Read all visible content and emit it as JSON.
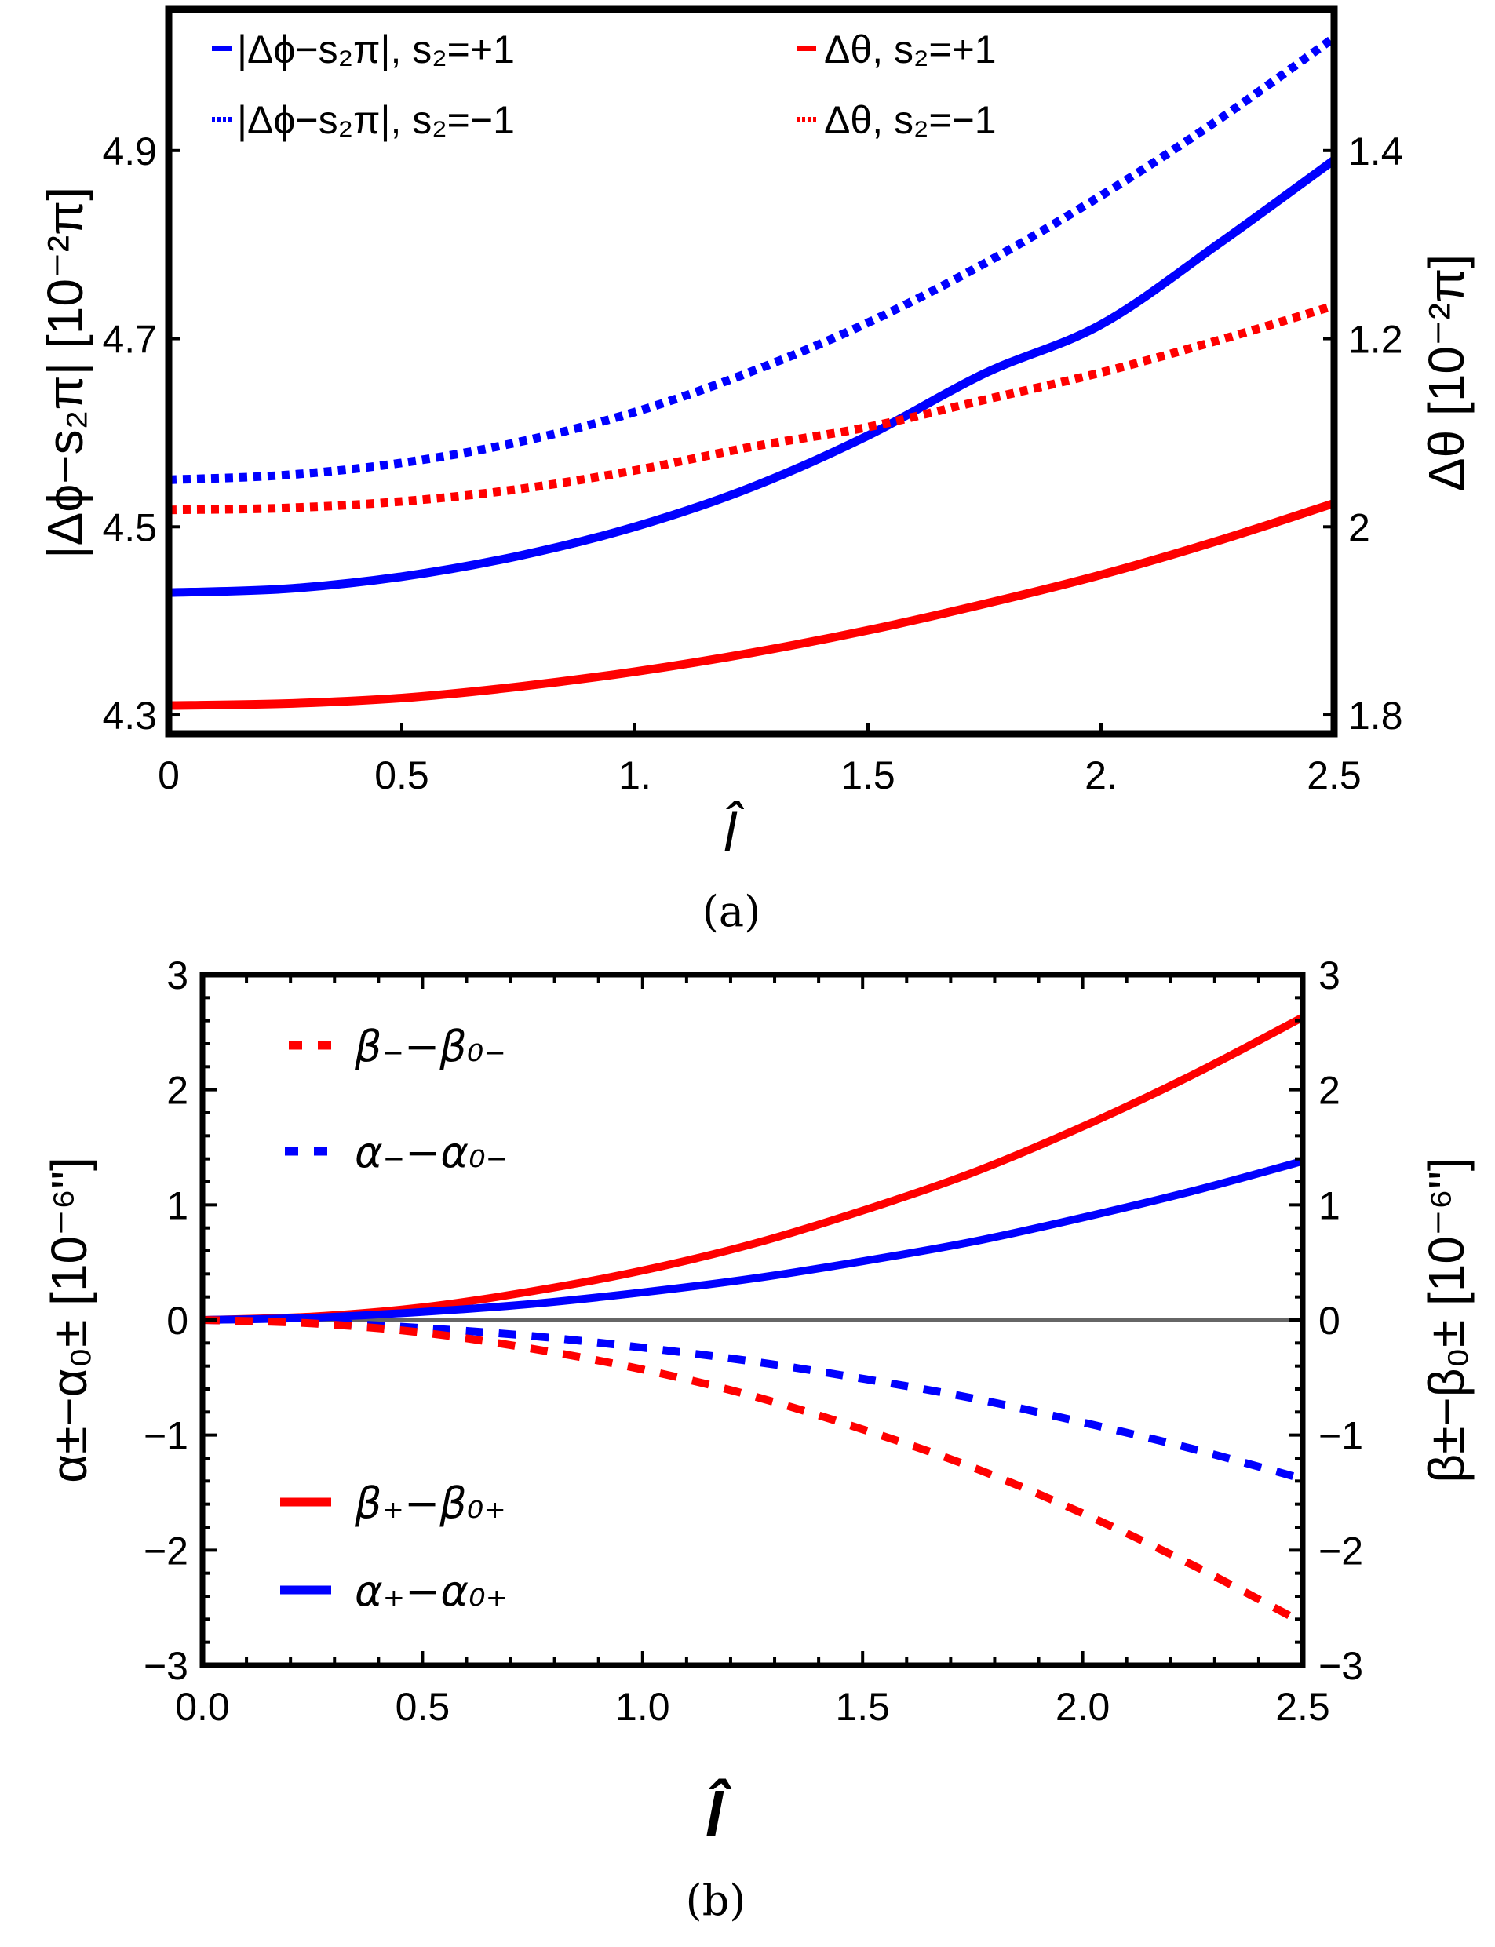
{
  "chart_data": [
    {
      "panel": "(a)",
      "type": "line",
      "caption": "(a)",
      "xlabel": "l̂",
      "ylabel_left": "|Δϕ−s₂π| [10⁻²π]",
      "ylabel_right": "Δθ [10⁻²π]",
      "xlim": [
        0,
        2.5
      ],
      "ylim_left": [
        4.28,
        5.05
      ],
      "x_ticks": [
        "0",
        "0.5",
        "1.",
        "1.5",
        "2.",
        "2.5"
      ],
      "x_tick_values": [
        0,
        0.5,
        1,
        1.5,
        2,
        2.5
      ],
      "y_left_ticks": [
        "4.3",
        "4.5",
        "4.7",
        "4.9"
      ],
      "y_left_tick_values": [
        4.3,
        4.5,
        4.7,
        4.9
      ],
      "y_right_ticks": [
        "1.8",
        "2",
        "1.2",
        "1.4"
      ],
      "y_right_tick_positions_in_left_units": [
        4.3,
        4.5,
        4.7,
        4.9
      ],
      "grid": false,
      "legend_position": "top",
      "legend": [
        {
          "label": "|Δϕ−s₂π|, s₂=+1",
          "color": "#0000ff",
          "style": "solid"
        },
        {
          "label": "Δθ, s₂=+1",
          "color": "#ff0000",
          "style": "solid"
        },
        {
          "label": "|Δϕ−s₂π|, s₂=−1",
          "color": "#0000ff",
          "style": "dotted"
        },
        {
          "label": "Δθ, s₂=−1",
          "color": "#ff0000",
          "style": "dotted"
        }
      ],
      "x": [
        0,
        0.25,
        0.5,
        0.75,
        1.0,
        1.25,
        1.5,
        1.75,
        2.0,
        2.25,
        2.5
      ],
      "series": [
        {
          "name": "|Δϕ−s₂π|, s₂=+1",
          "color": "#0000ff",
          "style": "solid",
          "values_left_units": [
            4.43,
            4.434,
            4.447,
            4.469,
            4.5,
            4.542,
            4.597,
            4.663,
            4.715,
            4.8,
            4.89
          ]
        },
        {
          "name": "|Δϕ−s₂π|, s₂=−1",
          "color": "#0000ff",
          "style": "dotted",
          "values_left_units": [
            4.55,
            4.555,
            4.568,
            4.59,
            4.622,
            4.665,
            4.717,
            4.78,
            4.852,
            4.932,
            5.02
          ]
        },
        {
          "name": "Δθ, s₂=−1",
          "color": "#ff0000",
          "style": "dotted",
          "values_left_units": [
            4.518,
            4.52,
            4.527,
            4.54,
            4.56,
            4.585,
            4.606,
            4.635,
            4.664,
            4.698,
            4.735
          ]
        },
        {
          "name": "Δθ, s₂=+1",
          "color": "#ff0000",
          "style": "solid",
          "values_left_units": [
            4.31,
            4.312,
            4.318,
            4.33,
            4.346,
            4.366,
            4.39,
            4.418,
            4.449,
            4.485,
            4.525
          ]
        }
      ]
    },
    {
      "panel": "(b)",
      "type": "line",
      "caption": "(b)",
      "xlabel": "l̂",
      "ylabel_left": "α±−α0± [10⁻⁶\"]",
      "ylabel_right": "β±−β0± [10⁻⁶\"]",
      "xlim": [
        0,
        2.5
      ],
      "ylim": [
        -3,
        3
      ],
      "x_ticks": [
        "0.0",
        "0.5",
        "1.0",
        "1.5",
        "2.0",
        "2.5"
      ],
      "x_tick_values": [
        0,
        0.5,
        1,
        1.5,
        2,
        2.5
      ],
      "y_ticks": [
        "−3",
        "−2",
        "−1",
        "0",
        "1",
        "2",
        "3"
      ],
      "y_tick_values": [
        -3,
        -2,
        -1,
        0,
        1,
        2,
        3
      ],
      "grid": false,
      "zero_line_color": "#666666",
      "legend_position": "left (upper and lower)",
      "legend": [
        {
          "label": "β₋−β0₋",
          "color": "#ff0000",
          "style": "dashed"
        },
        {
          "label": "α₋−α0₋",
          "color": "#0000ff",
          "style": "dashed"
        },
        {
          "label": "β₊−β0₊",
          "color": "#ff0000",
          "style": "solid"
        },
        {
          "label": "α₊−α0₊",
          "color": "#0000ff",
          "style": "solid"
        }
      ],
      "x": [
        0,
        0.25,
        0.5,
        0.75,
        1.0,
        1.25,
        1.5,
        1.75,
        2.0,
        2.25,
        2.5
      ],
      "series": [
        {
          "name": "β₊−β0₊",
          "color": "#ff0000",
          "style": "solid",
          "values": [
            0,
            0.03,
            0.11,
            0.25,
            0.43,
            0.66,
            0.95,
            1.28,
            1.68,
            2.13,
            2.63
          ]
        },
        {
          "name": "α₊−α0₊",
          "color": "#0000ff",
          "style": "solid",
          "values": [
            0,
            0.02,
            0.07,
            0.14,
            0.24,
            0.36,
            0.51,
            0.68,
            0.89,
            1.12,
            1.38
          ]
        },
        {
          "name": "α₋−α0₋",
          "color": "#0000ff",
          "style": "dashed",
          "values": [
            0,
            -0.02,
            -0.07,
            -0.14,
            -0.24,
            -0.36,
            -0.51,
            -0.68,
            -0.89,
            -1.12,
            -1.38
          ]
        },
        {
          "name": "β₋−β0₋",
          "color": "#ff0000",
          "style": "dashed",
          "values": [
            0,
            -0.03,
            -0.11,
            -0.25,
            -0.43,
            -0.66,
            -0.95,
            -1.28,
            -1.68,
            -2.13,
            -2.63
          ]
        }
      ]
    }
  ],
  "panel_a": {
    "legend": [
      {
        "label": "|Δϕ−s₂π|, s₂=+1"
      },
      {
        "label": "Δθ, s₂=+1"
      },
      {
        "label": "|Δϕ−s₂π|, s₂=−1"
      },
      {
        "label": "Δθ, s₂=−1"
      }
    ],
    "ylabel_left": "|Δϕ−s₂π| [10⁻²π]",
    "ylabel_right": "Δθ [10⁻²π]",
    "xlabel": "l̂",
    "caption": "(a)"
  },
  "panel_b": {
    "legend": [
      {
        "label": "β₋−β₀₋"
      },
      {
        "label": "α₋−α₀₋"
      },
      {
        "label": "β₊−β₀₊"
      },
      {
        "label": "α₊−α₀₊"
      }
    ],
    "ylabel_left": "α±−α₀± [10⁻⁶\"]",
    "ylabel_right": "β±−β₀± [10⁻⁶\"]",
    "xlabel": "l̂",
    "caption": "(b)"
  }
}
